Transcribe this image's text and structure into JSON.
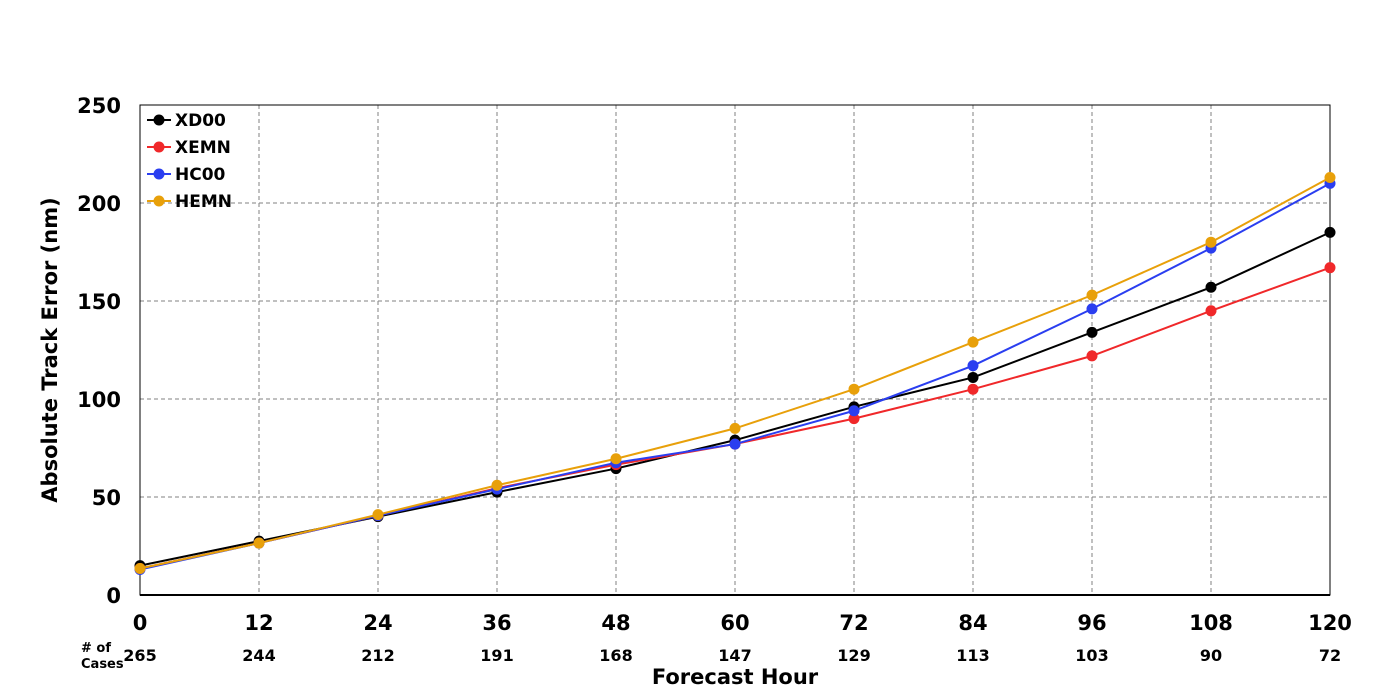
{
  "chart_data": {
    "type": "line",
    "title": "",
    "xlabel": "Forecast Hour",
    "ylabel": "Absolute Track Error (nm)",
    "x": [
      0,
      12,
      24,
      36,
      48,
      60,
      72,
      84,
      96,
      108,
      120
    ],
    "xticks": [
      "0",
      "12",
      "24",
      "36",
      "48",
      "60",
      "72",
      "84",
      "96",
      "108",
      "120"
    ],
    "yticks": [
      "0",
      "50",
      "100",
      "150",
      "200",
      "250"
    ],
    "xlim": [
      0,
      120
    ],
    "ylim": [
      0,
      250
    ],
    "grid": true,
    "legend_position": "top-left",
    "cases_header": [
      "# of",
      "Cases"
    ],
    "cases": [
      "265",
      "244",
      "212",
      "191",
      "168",
      "147",
      "129",
      "113",
      "103",
      "90",
      "72"
    ],
    "series": [
      {
        "name": "XD00",
        "color": "#000000",
        "values": [
          15,
          27.5,
          40,
          52.5,
          64.5,
          79,
          96,
          111,
          134,
          157,
          185
        ]
      },
      {
        "name": "XEMN",
        "color": "#f0282a",
        "values": [
          13.5,
          26.5,
          40.5,
          54.5,
          66.5,
          77,
          90,
          105,
          122,
          145,
          167
        ]
      },
      {
        "name": "HC00",
        "color": "#2a3ef0",
        "values": [
          13,
          26.5,
          40.5,
          54,
          67.5,
          77,
          94,
          117,
          146,
          177,
          210
        ]
      },
      {
        "name": "HEMN",
        "color": "#e8a00a",
        "values": [
          13.5,
          26.5,
          41,
          56,
          69.5,
          85,
          105,
          129,
          153,
          180,
          213
        ]
      }
    ]
  }
}
